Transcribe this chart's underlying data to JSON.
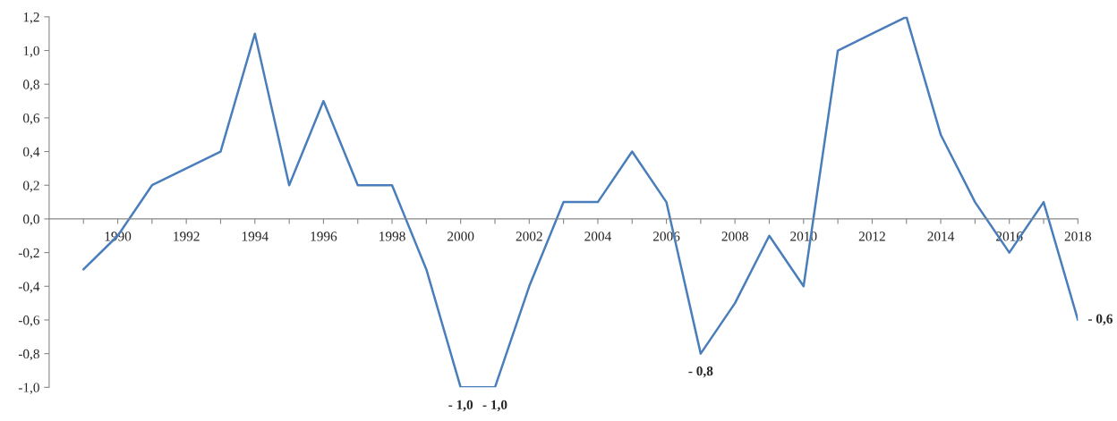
{
  "chart_data": {
    "type": "line",
    "x": [
      1989,
      1990,
      1991,
      1992,
      1993,
      1994,
      1995,
      1996,
      1997,
      1998,
      1999,
      2000,
      2001,
      2002,
      2003,
      2004,
      2005,
      2006,
      2007,
      2008,
      2009,
      2010,
      2011,
      2012,
      2013,
      2014,
      2015,
      2016,
      2017,
      2018
    ],
    "series": [
      {
        "color": "#4a7ebb",
        "values": [
          -0.3,
          -0.1,
          0.2,
          0.3,
          0.4,
          1.1,
          0.2,
          0.7,
          0.2,
          0.2,
          -0.3,
          -1.0,
          -1.0,
          -0.4,
          0.1,
          0.1,
          0.4,
          0.1,
          -0.8,
          -0.5,
          -0.1,
          -0.4,
          1.0,
          1.1,
          1.2,
          0.5,
          0.1,
          -0.2,
          0.1,
          -0.6
        ],
        "value_labels": [
          null,
          null,
          null,
          null,
          null,
          null,
          null,
          null,
          null,
          null,
          null,
          "- 1,0",
          "- 1,0",
          null,
          null,
          null,
          null,
          null,
          "- 0,8",
          null,
          null,
          null,
          null,
          null,
          null,
          null,
          null,
          null,
          null,
          "- 0,6"
        ]
      }
    ],
    "xlim": [
      1988,
      2018
    ],
    "xticks": [
      {
        "value": 1989,
        "label": null
      },
      1990,
      {
        "value": 1991,
        "label": null
      },
      1992,
      {
        "value": 1993,
        "label": null
      },
      1994,
      {
        "value": 1995,
        "label": null
      },
      1996,
      {
        "value": 1997,
        "label": null
      },
      1998,
      {
        "value": 1999,
        "label": null
      },
      2000,
      {
        "value": 2001,
        "label": null
      },
      2002,
      {
        "value": 2003,
        "label": null
      },
      2004,
      {
        "value": 2005,
        "label": null
      },
      2006,
      {
        "value": 2007,
        "label": null
      },
      2008,
      {
        "value": 2009,
        "label": null
      },
      2010,
      {
        "value": 2011,
        "label": null
      },
      2012,
      {
        "value": 2013,
        "label": null
      },
      2014,
      {
        "value": 2015,
        "label": null
      },
      2016,
      {
        "value": 2017,
        "label": null
      },
      2018
    ],
    "ylim": [
      -1.0,
      1.2
    ],
    "yticks": [
      {
        "value": -1.0,
        "label": "-1,0"
      },
      {
        "value": -0.8,
        "label": "-0,8"
      },
      {
        "value": -0.6,
        "label": "-0,6"
      },
      {
        "value": -0.4,
        "label": "-0,4"
      },
      {
        "value": -0.2,
        "label": "-0,2"
      },
      {
        "value": 0.0,
        "label": "0,0"
      },
      {
        "value": 0.2,
        "label": "0,2"
      },
      {
        "value": 0.4,
        "label": "0,4"
      },
      {
        "value": 0.6,
        "label": "0,6"
      },
      {
        "value": 0.8,
        "label": "0,8"
      },
      {
        "value": 1.0,
        "label": "1,0"
      },
      {
        "value": 1.2,
        "label": "1,2"
      }
    ],
    "grid": false,
    "legend": false,
    "marker": "none",
    "line_style": "solid"
  }
}
